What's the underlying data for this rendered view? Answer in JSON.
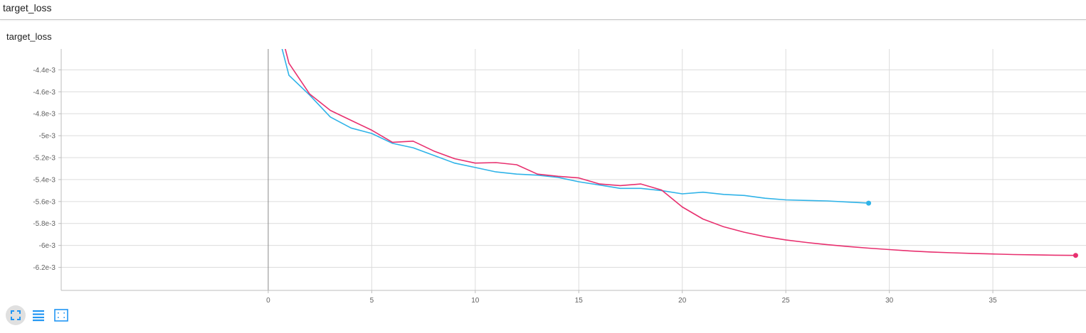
{
  "header": {
    "title": "target_loss"
  },
  "card": {
    "title": "target_loss"
  },
  "toolbar": {
    "buttons": [
      {
        "icon": "fullscreen-icon"
      },
      {
        "icon": "data-list-icon"
      },
      {
        "icon": "fit-domain-icon"
      }
    ],
    "accent": "#2196f3"
  },
  "chart_data": {
    "type": "line",
    "title": "target_loss",
    "xlabel": "",
    "ylabel": "",
    "xlim": [
      -10,
      39.5
    ],
    "ylim": [
      -0.00641,
      -0.00421
    ],
    "x_ticks": [
      0,
      5,
      10,
      15,
      20,
      25,
      30,
      35
    ],
    "x_tick_labels": [
      "0",
      "5",
      "10",
      "15",
      "20",
      "25",
      "30",
      "35"
    ],
    "y_ticks": [
      -0.0062,
      -0.006,
      -0.0058,
      -0.0056,
      -0.0054,
      -0.0052,
      -0.005,
      -0.0048,
      -0.0046,
      -0.0044
    ],
    "y_tick_labels": [
      "-6.2e-3",
      "-6e-3",
      "-5.8e-3",
      "-5.6e-3",
      "-5.4e-3",
      "-5.2e-3",
      "-5e-3",
      "-4.8e-3",
      "-4.6e-3",
      "-4.4e-3"
    ],
    "grid": true,
    "series": [
      {
        "color": "#2fb3e8",
        "x": [
          0,
          1,
          2,
          3,
          4,
          5,
          6,
          7,
          8,
          9,
          10,
          11,
          12,
          13,
          14,
          15,
          16,
          17,
          18,
          19,
          20,
          21,
          22,
          23,
          24,
          25,
          26,
          27,
          28,
          29
        ],
        "values": [
          -0.00372,
          -0.00445,
          -0.00463,
          -0.00483,
          -0.00493,
          -0.00498,
          -0.00507,
          -0.00511,
          -0.00518,
          -0.00525,
          -0.00529,
          -0.00533,
          -0.00535,
          -0.00536,
          -0.00538,
          -0.00542,
          -0.00545,
          -0.00548,
          -0.00548,
          -0.0055,
          -0.00553,
          -0.005515,
          -0.005535,
          -0.005545,
          -0.00557,
          -0.005585,
          -0.00559,
          -0.005595,
          -0.005605,
          -0.005615
        ]
      },
      {
        "color": "#e8306f",
        "x": [
          0,
          1,
          2,
          3,
          4,
          5,
          6,
          7,
          8,
          9,
          10,
          11,
          12,
          13,
          14,
          15,
          16,
          17,
          18,
          19,
          20,
          21,
          22,
          23,
          24,
          25,
          26,
          27,
          28,
          29,
          30,
          31,
          32,
          33,
          34,
          35,
          36,
          37,
          38,
          39
        ],
        "values": [
          -0.0036,
          -0.00434,
          -0.00462,
          -0.00477,
          -0.00486,
          -0.00495,
          -0.00506,
          -0.00505,
          -0.00514,
          -0.00521,
          -0.00525,
          -0.005245,
          -0.005265,
          -0.00535,
          -0.00537,
          -0.005385,
          -0.00544,
          -0.005455,
          -0.00544,
          -0.005495,
          -0.00565,
          -0.00576,
          -0.00583,
          -0.00588,
          -0.00592,
          -0.00595,
          -0.005973,
          -0.005993,
          -0.00601,
          -0.006025,
          -0.006038,
          -0.00605,
          -0.00606,
          -0.006067,
          -0.006073,
          -0.006078,
          -0.006083,
          -0.006086,
          -0.006089,
          -0.006091
        ]
      }
    ]
  }
}
